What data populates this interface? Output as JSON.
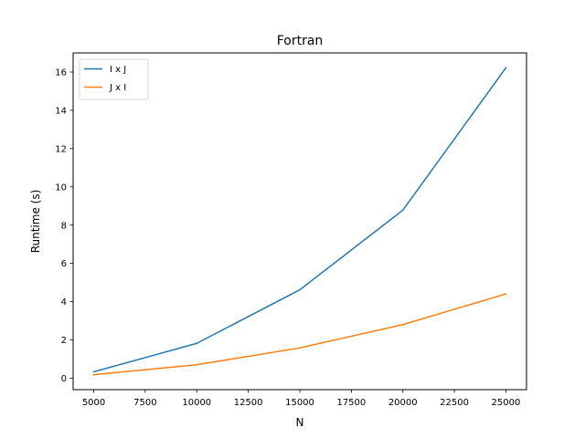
{
  "chart_data": {
    "type": "line",
    "title": "Fortran",
    "xlabel": "N",
    "ylabel": "Runtime (s)",
    "x": [
      5000,
      10000,
      15000,
      20000,
      25000
    ],
    "xlim": [
      4000,
      26000
    ],
    "ylim": [
      -0.6,
      17.0
    ],
    "xticks": [
      5000,
      7500,
      10000,
      12500,
      15000,
      17500,
      20000,
      22500,
      25000
    ],
    "yticks": [
      0,
      2,
      4,
      6,
      8,
      10,
      12,
      14,
      16
    ],
    "grid": false,
    "legend_position": "upper-left",
    "series": [
      {
        "name": "I x J",
        "color": "#1f77b4",
        "values": [
          0.33,
          1.82,
          4.62,
          8.78,
          16.22
        ]
      },
      {
        "name": "J x I",
        "color": "#ff7f0e",
        "values": [
          0.18,
          0.7,
          1.58,
          2.8,
          4.4
        ]
      }
    ]
  }
}
